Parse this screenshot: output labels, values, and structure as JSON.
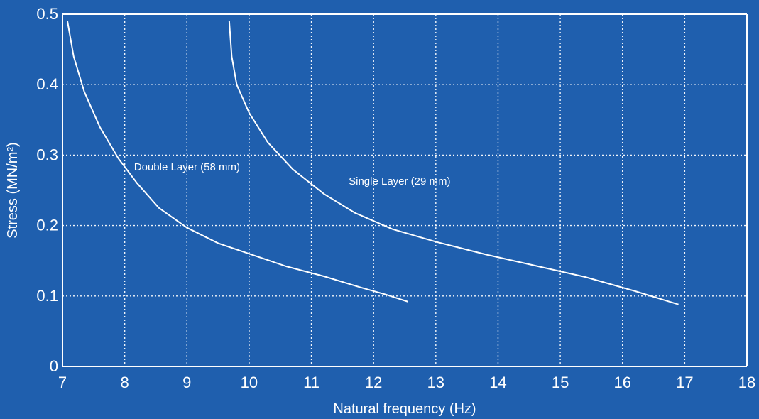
{
  "chart_data": {
    "type": "line",
    "title": "",
    "xlabel": "Natural frequency (Hz)",
    "ylabel": "Stress (MN/m²)",
    "xlim": [
      7,
      18
    ],
    "ylim": [
      0,
      0.5
    ],
    "x_ticks": [
      7,
      8,
      9,
      10,
      11,
      12,
      13,
      14,
      15,
      16,
      17,
      18
    ],
    "x_tick_labels": [
      "7",
      "8",
      "9",
      "10",
      "11",
      "12",
      "13",
      "14",
      "15",
      "16",
      "17",
      "18"
    ],
    "y_ticks": [
      0,
      0.1,
      0.2,
      0.3,
      0.4,
      0.5
    ],
    "y_tick_labels": [
      "0",
      "0.1",
      "0.2",
      "0.3",
      "0.4",
      "0.5"
    ],
    "grid": true,
    "legend": "none",
    "colors": {
      "background": "#1f5fae",
      "lines": "#ffffff",
      "grid": "#ffffff"
    },
    "series": [
      {
        "x": [
          7.08,
          7.18,
          7.35,
          7.6,
          7.9,
          8.2,
          8.55,
          9.0,
          9.5,
          10.0,
          10.6,
          11.2,
          11.8,
          12.2,
          12.55
        ],
        "y": [
          0.49,
          0.44,
          0.39,
          0.34,
          0.295,
          0.26,
          0.225,
          0.197,
          0.175,
          0.16,
          0.142,
          0.128,
          0.112,
          0.102,
          0.092
        ]
      },
      {
        "x": [
          9.68,
          9.72,
          9.8,
          10.0,
          10.3,
          10.7,
          11.2,
          11.7,
          12.3,
          13.0,
          13.8,
          14.6,
          15.4,
          16.2,
          16.9
        ],
        "y": [
          0.49,
          0.44,
          0.4,
          0.36,
          0.318,
          0.28,
          0.245,
          0.218,
          0.195,
          0.177,
          0.159,
          0.143,
          0.127,
          0.107,
          0.088
        ]
      }
    ],
    "annotations": [
      {
        "text": "Double Layer (58 mm)",
        "x": 8.15,
        "y": 0.278
      },
      {
        "text": "Single Layer (29 mm)",
        "x": 11.6,
        "y": 0.258
      }
    ]
  }
}
